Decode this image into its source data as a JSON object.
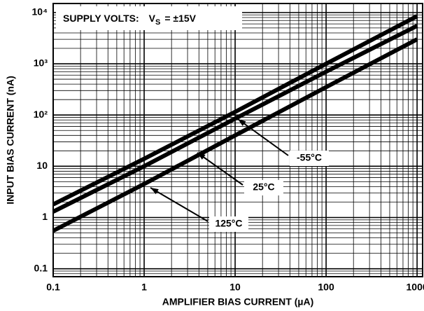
{
  "chart_data": {
    "type": "line",
    "x_label": "AMPLIFIER BIAS CURRENT (µA)",
    "y_label": "INPUT BIAS CURRENT (nA)",
    "condition": {
      "label": "SUPPLY VOLTS:",
      "symbol": "V",
      "subscript": "S",
      "value": "= ±15V"
    },
    "x": [
      0.1,
      1,
      10,
      100,
      1000
    ],
    "series": [
      {
        "name": "-55°C",
        "color": "#000000",
        "values": [
          1.8,
          14,
          115,
          1000,
          8500
        ]
      },
      {
        "name": "25°C",
        "color": "#000000",
        "values": [
          1.3,
          10,
          85,
          700,
          5500
        ]
      },
      {
        "name": "125°C",
        "color": "#000000",
        "values": [
          0.55,
          4.5,
          40,
          350,
          3000
        ]
      }
    ],
    "xscale": "log",
    "yscale": "log",
    "xlim": [
      0.1,
      1150
    ],
    "ylim": [
      0.07,
      15000
    ],
    "xticks": [
      0.1,
      1,
      10,
      100,
      1000
    ],
    "yticks": [
      0.1,
      1,
      10,
      {
        "value": 100,
        "label": "10²"
      },
      {
        "value": 1000,
        "label": "10³"
      },
      {
        "value": 10000,
        "label": "10⁴"
      }
    ],
    "grid": true
  }
}
